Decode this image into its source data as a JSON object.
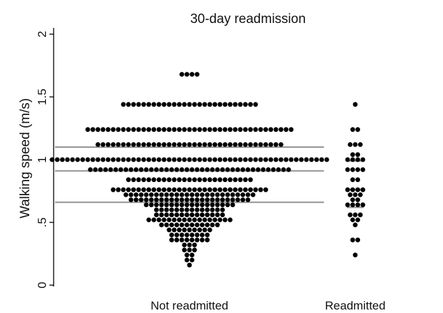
{
  "chart_data": {
    "type": "scatter",
    "title": "30-day readmission",
    "xlabel": "",
    "ylabel": "Walking speed (m/s)",
    "ylim": [
      0,
      2
    ],
    "yticks": [
      {
        "value": 0,
        "label": "0"
      },
      {
        "value": 0.5,
        "label": ".5"
      },
      {
        "value": 1,
        "label": "1"
      },
      {
        "value": 1.5,
        "label": "1.5"
      },
      {
        "value": 2,
        "label": "2"
      }
    ],
    "categories": [
      "Not readmitted",
      "Readmitted"
    ],
    "grid": false,
    "style": {
      "point_color": "#000000",
      "quartile_line_color": "#999999"
    },
    "series": [
      {
        "name": "Not readmitted",
        "bins": [
          {
            "y": 1.68,
            "count": 4
          },
          {
            "y": 1.44,
            "count": 27
          },
          {
            "y": 1.24,
            "count": 41
          },
          {
            "y": 1.12,
            "count": 37
          },
          {
            "y": 1.0,
            "count": 55
          },
          {
            "y": 0.92,
            "count": 40
          },
          {
            "y": 0.84,
            "count": 25
          },
          {
            "y": 0.76,
            "count": 31
          },
          {
            "y": 0.72,
            "count": 26
          },
          {
            "y": 0.68,
            "count": 24
          },
          {
            "y": 0.64,
            "count": 18
          },
          {
            "y": 0.6,
            "count": 14
          },
          {
            "y": 0.56,
            "count": 14
          },
          {
            "y": 0.52,
            "count": 17
          },
          {
            "y": 0.48,
            "count": 12
          },
          {
            "y": 0.44,
            "count": 9
          },
          {
            "y": 0.4,
            "count": 8
          },
          {
            "y": 0.36,
            "count": 8
          },
          {
            "y": 0.32,
            "count": 3
          },
          {
            "y": 0.28,
            "count": 3
          },
          {
            "y": 0.24,
            "count": 2
          },
          {
            "y": 0.2,
            "count": 2
          },
          {
            "y": 0.16,
            "count": 1
          }
        ],
        "quartiles": [
          0.66,
          0.91,
          1.1
        ]
      },
      {
        "name": "Readmitted",
        "bins": [
          {
            "y": 1.44,
            "count": 1
          },
          {
            "y": 1.24,
            "count": 2
          },
          {
            "y": 1.12,
            "count": 3
          },
          {
            "y": 1.04,
            "count": 2
          },
          {
            "y": 1.0,
            "count": 4
          },
          {
            "y": 0.92,
            "count": 4
          },
          {
            "y": 0.84,
            "count": 2
          },
          {
            "y": 0.76,
            "count": 4
          },
          {
            "y": 0.72,
            "count": 3
          },
          {
            "y": 0.68,
            "count": 2
          },
          {
            "y": 0.64,
            "count": 4
          },
          {
            "y": 0.56,
            "count": 3
          },
          {
            "y": 0.52,
            "count": 2
          },
          {
            "y": 0.48,
            "count": 1
          },
          {
            "y": 0.36,
            "count": 2
          },
          {
            "y": 0.24,
            "count": 1
          }
        ],
        "quartiles": [
          0.62,
          0.76,
          0.99
        ]
      }
    ]
  }
}
